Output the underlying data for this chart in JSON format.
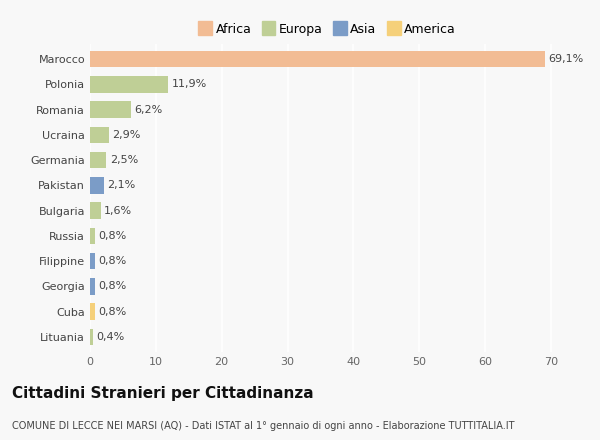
{
  "categories": [
    "Marocco",
    "Polonia",
    "Romania",
    "Ucraina",
    "Germania",
    "Pakistan",
    "Bulgaria",
    "Russia",
    "Filippine",
    "Georgia",
    "Cuba",
    "Lituania"
  ],
  "values": [
    69.1,
    11.9,
    6.2,
    2.9,
    2.5,
    2.1,
    1.6,
    0.8,
    0.8,
    0.8,
    0.8,
    0.4
  ],
  "labels": [
    "69,1%",
    "11,9%",
    "6,2%",
    "2,9%",
    "2,5%",
    "2,1%",
    "1,6%",
    "0,8%",
    "0,8%",
    "0,8%",
    "0,8%",
    "0,4%"
  ],
  "colors": [
    "#F2BC94",
    "#BFCF96",
    "#BFCF96",
    "#BFCF96",
    "#BFCF96",
    "#7B9CC7",
    "#BFCF96",
    "#BFCF96",
    "#7B9CC7",
    "#7B9CC7",
    "#F5D07A",
    "#BFCF96"
  ],
  "legend": [
    {
      "label": "Africa",
      "color": "#F2BC94"
    },
    {
      "label": "Europa",
      "color": "#BFCF96"
    },
    {
      "label": "Asia",
      "color": "#7B9CC7"
    },
    {
      "label": "America",
      "color": "#F5D07A"
    }
  ],
  "xlim": [
    0,
    72
  ],
  "xticks": [
    0,
    10,
    20,
    30,
    40,
    50,
    60,
    70
  ],
  "title": "Cittadini Stranieri per Cittadinanza",
  "subtitle": "COMUNE DI LECCE NEI MARSI (AQ) - Dati ISTAT al 1° gennaio di ogni anno - Elaborazione TUTTITALIA.IT",
  "background_color": "#F8F8F8",
  "grid_color": "#FFFFFF",
  "bar_height": 0.65,
  "title_fontsize": 11,
  "subtitle_fontsize": 7,
  "label_fontsize": 8,
  "tick_fontsize": 8,
  "legend_fontsize": 9
}
